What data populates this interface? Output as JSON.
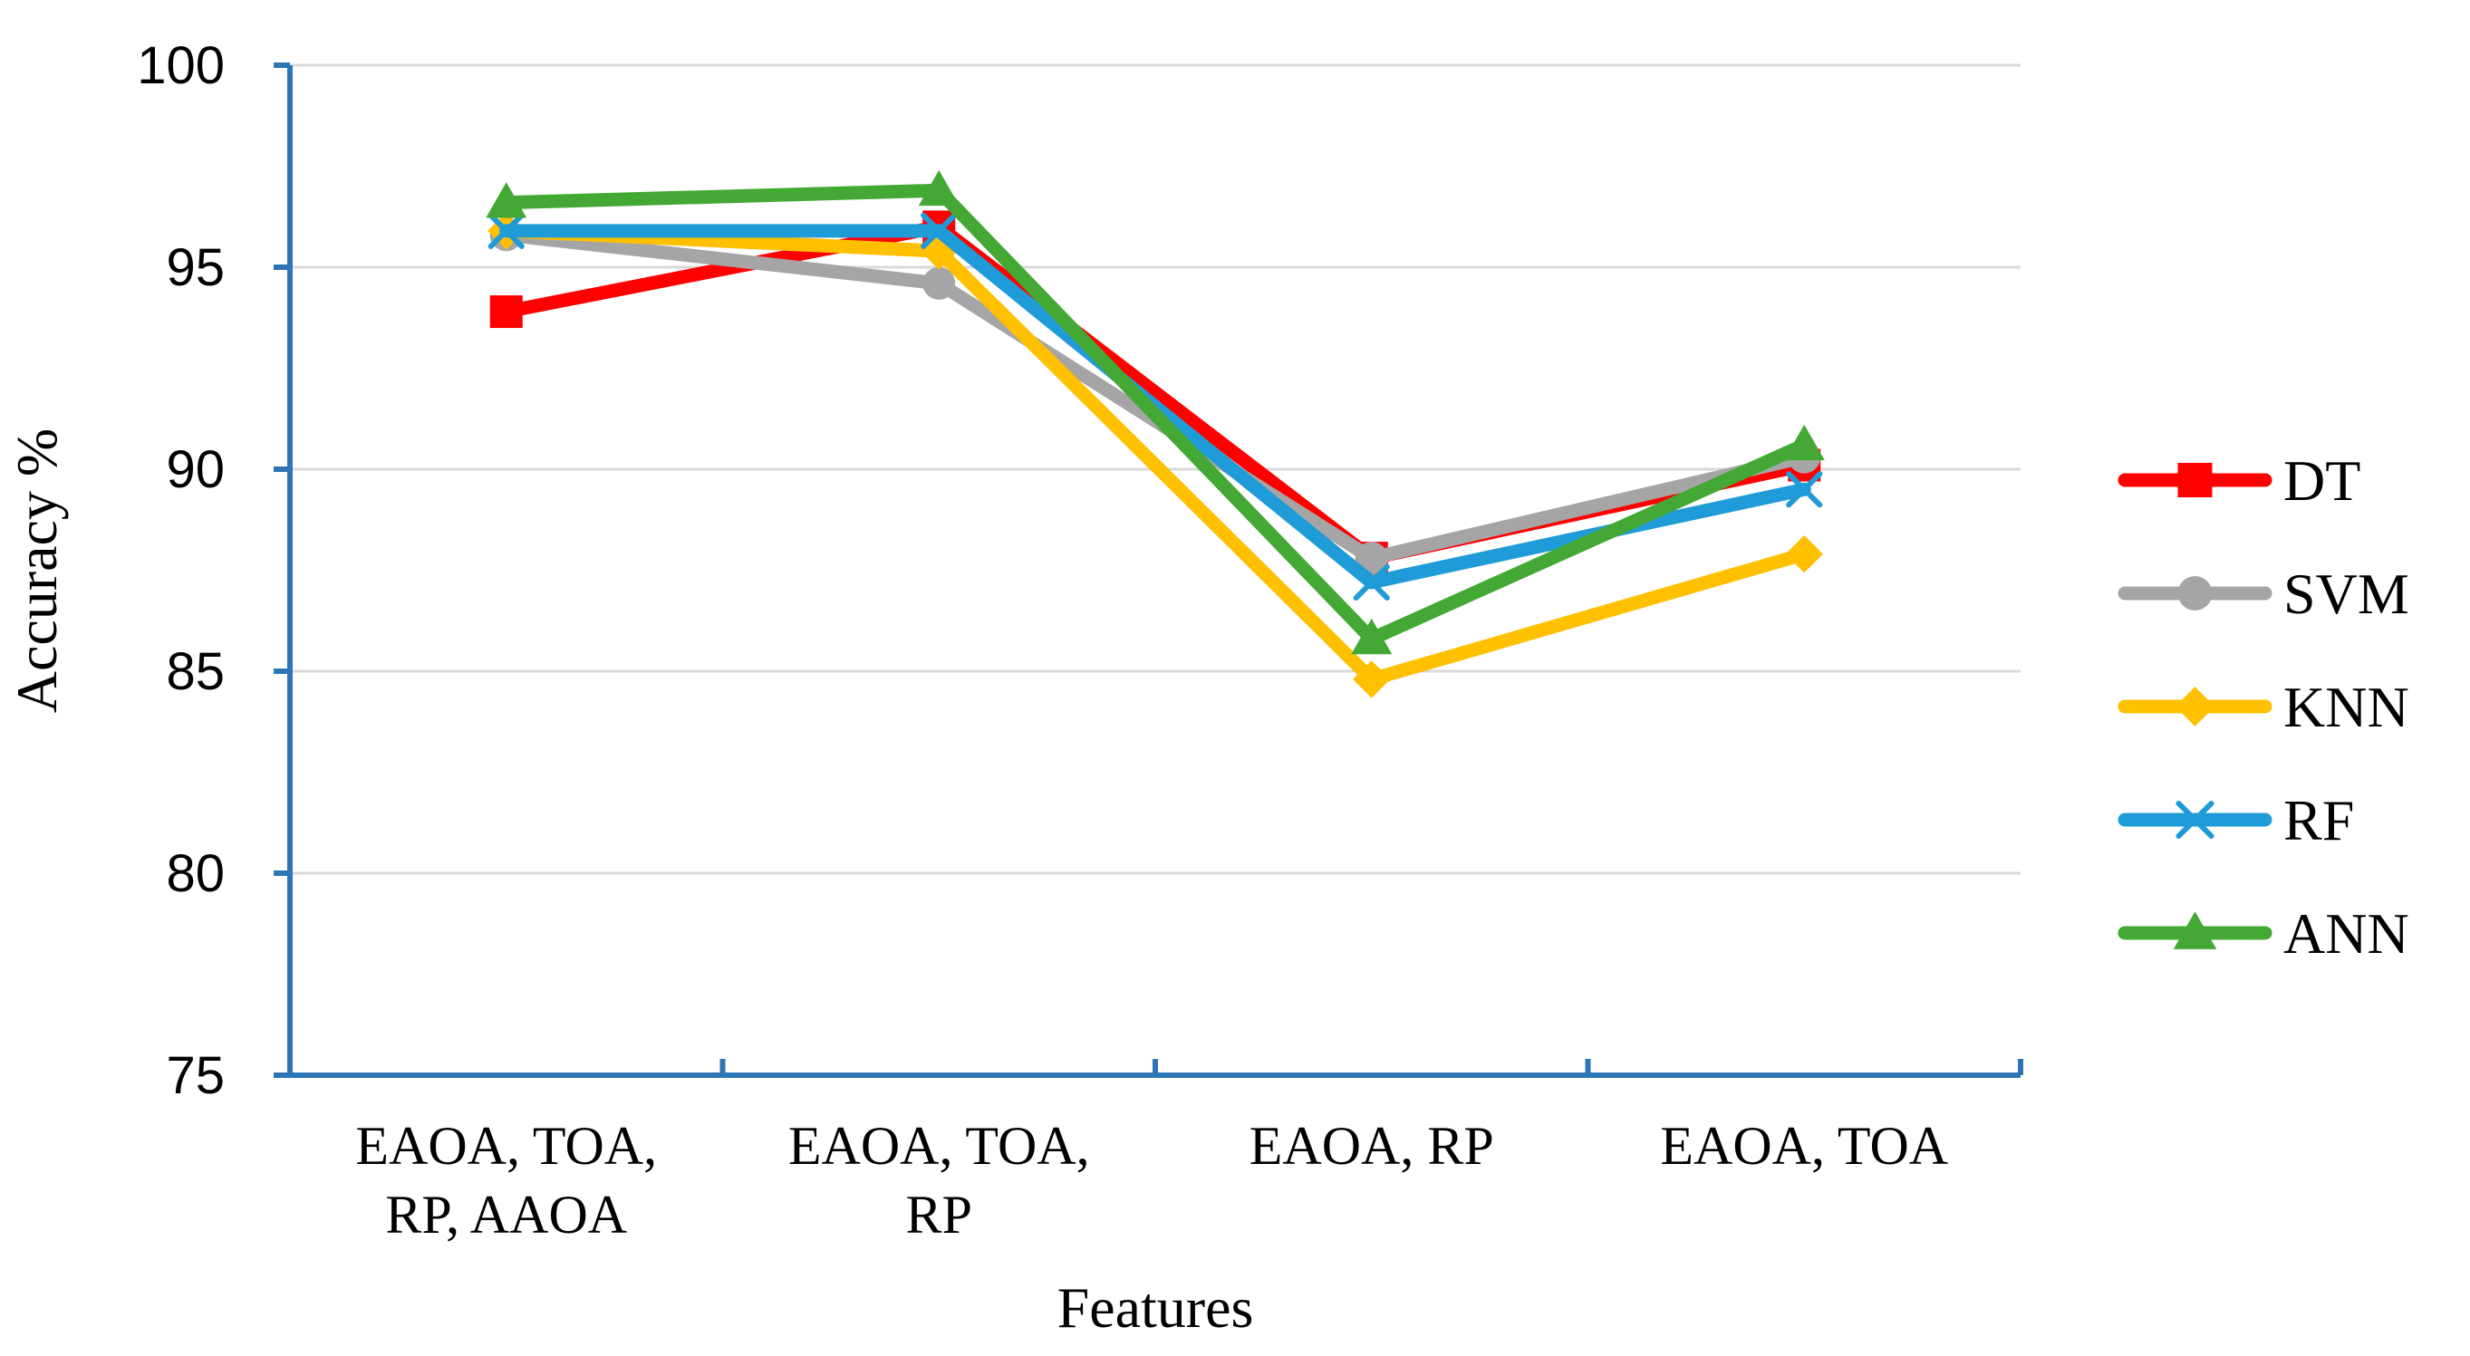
{
  "chart_data": {
    "type": "line",
    "title": "",
    "xlabel": "Features",
    "ylabel": "Accuracy %",
    "ylim": [
      75,
      100
    ],
    "yticks": [
      "75",
      "80",
      "85",
      "90",
      "95",
      "100"
    ],
    "ytick_values": [
      75,
      80,
      85,
      90,
      95,
      100
    ],
    "grid": true,
    "legend_position": "right",
    "categories": [
      [
        "EAOA, TOA,",
        "RP, AAOA"
      ],
      [
        "EAOA, TOA,",
        "RP"
      ],
      [
        "EAOA, RP"
      ],
      [
        "EAOA, TOA"
      ]
    ],
    "series": [
      {
        "name": "DT",
        "color": "#ff0000",
        "marker": "square",
        "values": [
          93.9,
          96.0,
          87.8,
          90.1
        ]
      },
      {
        "name": "SVM",
        "color": "#a5a5a5",
        "marker": "circle",
        "values": [
          95.8,
          94.6,
          87.8,
          90.3
        ]
      },
      {
        "name": "KNN",
        "color": "#ffc000",
        "marker": "diamond",
        "values": [
          95.9,
          95.4,
          84.8,
          87.9
        ]
      },
      {
        "name": "RF",
        "color": "#1f9bd7",
        "marker": "x",
        "values": [
          95.9,
          95.9,
          87.2,
          89.5
        ]
      },
      {
        "name": "ANN",
        "color": "#43a934",
        "marker": "triangle",
        "values": [
          96.6,
          96.9,
          85.8,
          90.6
        ]
      }
    ],
    "axis_color": "#2e75b6",
    "grid_color": "#d9d9d9"
  }
}
